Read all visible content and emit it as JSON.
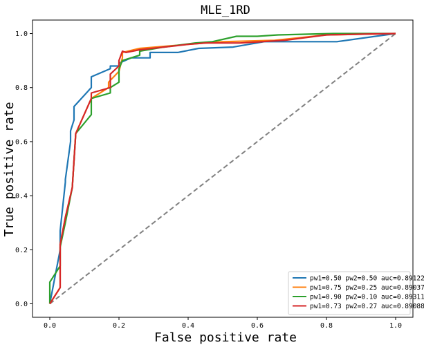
{
  "chart_data": {
    "type": "line",
    "title": "MLE_1RD",
    "xlabel": "False positive rate",
    "ylabel": "True positive rate",
    "xlim": [
      -0.05,
      1.05
    ],
    "ylim": [
      -0.05,
      1.05
    ],
    "xticks": [
      0.0,
      0.2,
      0.4,
      0.6,
      0.8,
      1.0
    ],
    "yticks": [
      0.0,
      0.2,
      0.4,
      0.6,
      0.8,
      1.0
    ],
    "xtick_labels": [
      "0.0",
      "0.2",
      "0.4",
      "0.6",
      "0.8",
      "1.0"
    ],
    "ytick_labels": [
      "0.0",
      "0.2",
      "0.4",
      "0.6",
      "0.8",
      "1.0"
    ],
    "grid": false,
    "legend_position": "lower-right",
    "series": [
      {
        "name": "pw1=0.50 pw2=0.50 auc=0.89122",
        "color": "#1f77b4",
        "x": [
          0.0,
          0.03,
          0.03,
          0.045,
          0.045,
          0.06,
          0.06,
          0.07,
          0.07,
          0.12,
          0.12,
          0.175,
          0.175,
          0.2,
          0.2,
          0.235,
          0.29,
          0.29,
          0.37,
          0.43,
          0.53,
          0.62,
          0.83,
          1.0
        ],
        "y": [
          0.0,
          0.2,
          0.27,
          0.45,
          0.46,
          0.6,
          0.64,
          0.68,
          0.73,
          0.8,
          0.84,
          0.87,
          0.88,
          0.88,
          0.89,
          0.91,
          0.91,
          0.93,
          0.93,
          0.945,
          0.95,
          0.97,
          0.97,
          1.0
        ]
      },
      {
        "name": "pw1=0.75 pw2=0.25 auc=0.89037",
        "color": "#ff7f0e",
        "x": [
          0.0,
          0.03,
          0.03,
          0.045,
          0.065,
          0.075,
          0.12,
          0.17,
          0.17,
          0.2,
          0.21,
          0.21,
          0.26,
          0.4,
          0.5,
          0.65,
          0.8,
          1.0
        ],
        "y": [
          0.0,
          0.06,
          0.22,
          0.32,
          0.43,
          0.63,
          0.76,
          0.8,
          0.82,
          0.86,
          0.91,
          0.93,
          0.945,
          0.96,
          0.97,
          0.975,
          0.995,
          1.0
        ]
      },
      {
        "name": "pw1=0.90 pw2=0.10 auc=0.89311",
        "color": "#2ca02c",
        "x": [
          0.0,
          0.0,
          0.03,
          0.03,
          0.045,
          0.065,
          0.075,
          0.12,
          0.12,
          0.175,
          0.175,
          0.2,
          0.2,
          0.21,
          0.26,
          0.26,
          0.33,
          0.42,
          0.47,
          0.54,
          0.6,
          0.66,
          0.82,
          1.0
        ],
        "y": [
          0.0,
          0.08,
          0.14,
          0.21,
          0.3,
          0.43,
          0.63,
          0.7,
          0.76,
          0.78,
          0.8,
          0.82,
          0.87,
          0.9,
          0.92,
          0.935,
          0.95,
          0.965,
          0.97,
          0.99,
          0.99,
          0.995,
          1.0,
          1.0
        ]
      },
      {
        "name": "pw1=0.73 pw2=0.27 auc=0.89088",
        "color": "#d62728",
        "x": [
          0.0,
          0.03,
          0.03,
          0.045,
          0.065,
          0.075,
          0.12,
          0.12,
          0.175,
          0.175,
          0.2,
          0.2,
          0.21,
          0.22,
          0.26,
          0.4,
          0.45,
          0.55,
          0.68,
          0.8,
          1.0
        ],
        "y": [
          0.0,
          0.06,
          0.22,
          0.32,
          0.43,
          0.63,
          0.76,
          0.78,
          0.8,
          0.85,
          0.88,
          0.9,
          0.935,
          0.93,
          0.94,
          0.96,
          0.965,
          0.965,
          0.975,
          0.995,
          1.0
        ]
      },
      {
        "name": "",
        "color": "#808080",
        "dashed": true,
        "x": [
          0.0,
          1.0
        ],
        "y": [
          0.0,
          1.0
        ]
      }
    ]
  }
}
